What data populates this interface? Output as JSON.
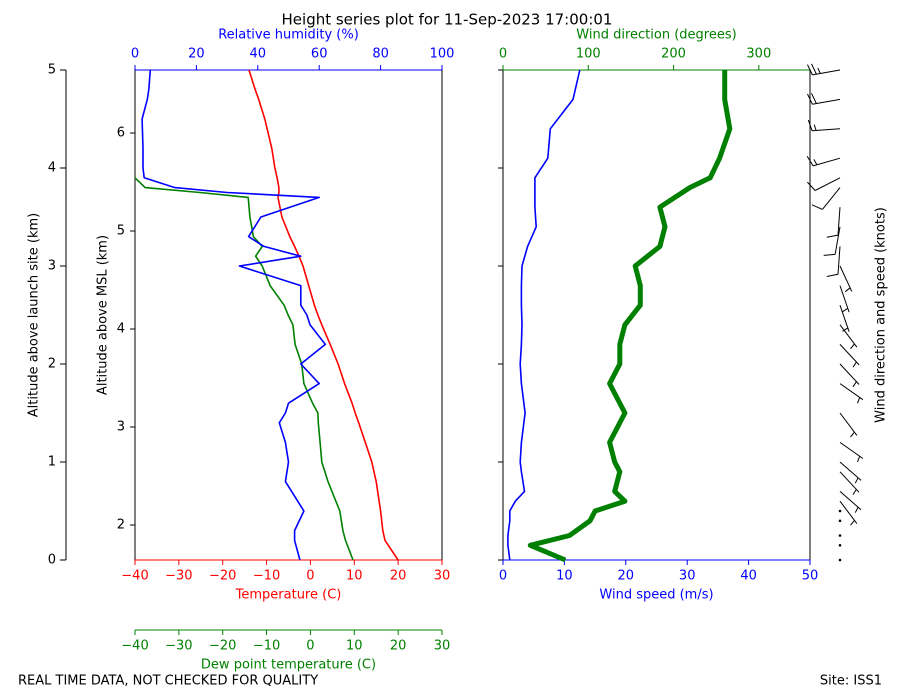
{
  "title": "Height series plot for 11-Sep-2023 17:00:01",
  "footer": {
    "left": "REAL TIME DATA, NOT CHECKED FOR QUALITY",
    "right": "Site: ISS1"
  },
  "chart_data": [
    {
      "type": "line",
      "ylabel": "Altitude above launch site (km)",
      "ylim": [
        0,
        5
      ],
      "yticks": [
        0,
        1,
        2,
        3,
        4,
        5
      ],
      "y2label": "Altitude above MSL (km)",
      "y2lim": [
        1.643,
        6.643
      ],
      "y2ticks": [
        2,
        3,
        4,
        5,
        6
      ],
      "y": [
        0,
        0.2,
        0.3,
        0.5,
        0.8,
        1,
        1.2,
        1.4,
        1.5,
        1.6,
        1.8,
        2,
        2.2,
        2.4,
        2.5,
        2.6,
        2.8,
        3,
        3.1,
        3.2,
        3.3,
        3.5,
        3.7,
        3.75,
        3.8,
        3.9,
        4,
        4.2,
        4.5,
        4.7,
        4.8,
        5
      ],
      "axes": [
        {
          "label": "Temperature (C)",
          "color": "#ff0000",
          "position": "bottom",
          "xlim": [
            -40,
            30
          ],
          "xticks": [
            {
              "value": -40,
              "label": "−40"
            },
            {
              "value": -30,
              "label": "−30"
            },
            {
              "value": -20,
              "label": "−20"
            },
            {
              "value": -10,
              "label": "−10"
            },
            0,
            10,
            20,
            30
          ]
        },
        {
          "label": "Dew point temperature (C)",
          "color": "#008000",
          "position": "bottom-outer",
          "xlim": [
            -40,
            30
          ],
          "xticks": [
            {
              "value": -40,
              "label": "−40"
            },
            {
              "value": -30,
              "label": "−30"
            },
            {
              "value": -20,
              "label": "−20"
            },
            {
              "value": -10,
              "label": "−10"
            },
            0,
            10,
            20,
            30
          ]
        },
        {
          "label": "Relative humidity (%)",
          "color": "#0000ff",
          "position": "top",
          "xlim": [
            0,
            100
          ],
          "xticks": [
            0,
            20,
            40,
            60,
            80,
            100
          ]
        }
      ],
      "series": [
        {
          "color": "#ff0000",
          "axis": 0,
          "values": [
            20,
            17,
            16.5,
            16,
            15,
            14,
            12.5,
            11,
            10.2,
            9.5,
            7.8,
            6.3,
            4.5,
            2.6,
            1.7,
            0.9,
            -0.4,
            -1.7,
            -2.6,
            -3.6,
            -4.7,
            -6.5,
            -7.4,
            -7.2,
            -7.2,
            -7.6,
            -8.1,
            -8.8,
            -10.4,
            -11.8,
            -12.6,
            -14
          ]
        },
        {
          "color": "#008000",
          "axis": 1,
          "values": [
            9.7,
            8,
            7.4,
            6.7,
            4,
            2.6,
            2.2,
            1.8,
            1.7,
            0.5,
            -1.5,
            -2,
            -3.5,
            -4,
            -5.1,
            -6,
            -9.2,
            -11,
            -12.5,
            -11,
            -13,
            -13.8,
            -14.2,
            -25.2,
            -37.7,
            -40,
            null,
            null,
            null,
            null,
            null,
            null
          ]
        },
        {
          "color": "#0000ff",
          "axis": 2,
          "values": [
            53.7,
            52,
            52,
            55,
            49,
            50,
            49,
            47,
            49,
            50,
            60,
            54,
            62,
            57,
            56,
            54,
            54,
            34,
            54,
            42,
            37,
            41,
            60,
            30,
            13,
            3,
            2.6,
            2.6,
            2.3,
            4,
            4.5,
            5
          ]
        }
      ]
    },
    {
      "type": "line",
      "ylim": [
        0,
        5
      ],
      "yticks": [
        0,
        1,
        2,
        3,
        4,
        5
      ],
      "y": [
        0,
        0.15,
        0.25,
        0.4,
        0.5,
        0.6,
        0.7,
        0.9,
        1,
        1.2,
        1.5,
        1.8,
        2,
        2.2,
        2.4,
        2.6,
        2.8,
        3,
        3.2,
        3.4,
        3.6,
        3.8,
        3.9,
        4.1,
        4.4,
        4.7,
        5
      ],
      "axes": [
        {
          "label": "Wind speed (m/s)",
          "color": "#0000ff",
          "position": "bottom",
          "xlim": [
            0,
            50
          ],
          "xticks": [
            0,
            10,
            20,
            30,
            40,
            50
          ]
        },
        {
          "label": "Wind direction (degrees)",
          "color": "#008000",
          "position": "top",
          "xlim": [
            0,
            360
          ],
          "xticks": [
            0,
            100,
            200,
            300
          ]
        }
      ],
      "series": [
        {
          "color": "#0000ff",
          "axis": 0,
          "values": [
            1.1,
            0.8,
            0.8,
            1.1,
            1.1,
            2,
            3.5,
            3,
            2.8,
            3,
            3.6,
            3,
            2.8,
            3,
            3.1,
            3,
            3,
            3.1,
            4,
            5.4,
            5.2,
            5.2,
            5.2,
            7.3,
            7.7,
            11.4,
            12.5
          ]
        },
        {
          "color": "#008000",
          "axis": 1,
          "line_width": 5,
          "values": [
            73,
            32,
            78,
            102,
            108,
            143,
            131,
            137,
            131,
            125,
            143,
            125,
            137,
            137,
            143,
            161,
            161,
            155,
            184,
            190,
            184,
            219,
            243,
            254,
            266,
            260,
            260
          ]
        }
      ],
      "barbs_label": "Wind direction and speed (knots)"
    }
  ]
}
